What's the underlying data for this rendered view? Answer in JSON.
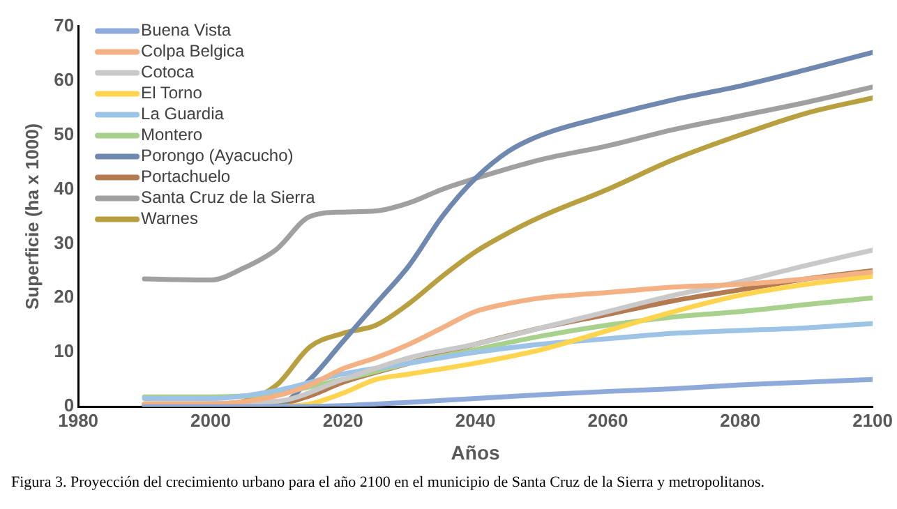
{
  "chart_data": {
    "type": "line",
    "xlabel": "Años",
    "ylabel": "Superficie (ha x 1000)",
    "xlim": [
      1980,
      2100
    ],
    "xticks": [
      1980,
      2000,
      2020,
      2040,
      2060,
      2080,
      2100
    ],
    "ylim": [
      0,
      70
    ],
    "yticks": [
      0,
      10,
      20,
      30,
      40,
      50,
      60,
      70
    ],
    "grid": false,
    "legend": "top left",
    "marker": "none",
    "line_style": "solid",
    "annotations": [
      "Figura 3. Proyección del crecimiento urbano para el año 2100 en el municipio de Santa Cruz de la Sierra y metropolitanos."
    ],
    "series": [
      {
        "name": "Buena Vista",
        "color": "#8eaadb",
        "x": [
          1990,
          2010,
          2020,
          2030,
          2040,
          2050,
          2060,
          2070,
          2080,
          2090,
          2100
        ],
        "values": [
          0,
          0,
          0.2,
          0.8,
          1.5,
          2.2,
          2.8,
          3.3,
          4,
          4.5,
          5
        ]
      },
      {
        "name": "Colpa Belgica",
        "color": "#f4b183",
        "x": [
          1990,
          2000,
          2010,
          2015,
          2020,
          2025,
          2030,
          2035,
          2040,
          2045,
          2050,
          2060,
          2070,
          2080,
          2090,
          2100
        ],
        "values": [
          0.5,
          0.5,
          2,
          4,
          7,
          9,
          11.5,
          14.5,
          17.5,
          19,
          20,
          21,
          22,
          22.5,
          23.5,
          24.8
        ]
      },
      {
        "name": "Cotoca",
        "color": "#c9c9c9",
        "x": [
          1990,
          2010,
          2020,
          2030,
          2040,
          2050,
          2060,
          2070,
          2080,
          2090,
          2100
        ],
        "values": [
          0.5,
          1,
          5,
          9,
          11.5,
          14.5,
          17.5,
          20.5,
          23,
          26,
          28.8
        ]
      },
      {
        "name": "El Torno",
        "color": "#ffd54f",
        "x": [
          1990,
          2010,
          2015,
          2020,
          2025,
          2030,
          2040,
          2050,
          2060,
          2070,
          2080,
          2090,
          2100
        ],
        "values": [
          0,
          0,
          0.5,
          2.5,
          5,
          6,
          8,
          10.5,
          14,
          17.5,
          20.5,
          22.5,
          24
        ]
      },
      {
        "name": "La Guardia",
        "color": "#9dc3e6",
        "x": [
          1990,
          2000,
          2010,
          2020,
          2030,
          2040,
          2050,
          2060,
          2070,
          2080,
          2090,
          2100
        ],
        "values": [
          1.5,
          1.5,
          3,
          6,
          8,
          10,
          11.5,
          12.5,
          13.5,
          14,
          14.5,
          15.3
        ]
      },
      {
        "name": "Montero",
        "color": "#a9d18e",
        "x": [
          1990,
          2000,
          2010,
          2020,
          2030,
          2040,
          2050,
          2060,
          2070,
          2080,
          2090,
          2100
        ],
        "values": [
          1.8,
          1.8,
          2.5,
          5,
          8,
          10.5,
          13,
          15,
          16.5,
          17.5,
          18.8,
          20
        ]
      },
      {
        "name": "Porongo (Ayacucho)",
        "color": "#6f88b0",
        "x": [
          1990,
          2000,
          2010,
          2015,
          2020,
          2025,
          2030,
          2035,
          2040,
          2045,
          2050,
          2060,
          2070,
          2080,
          2090,
          2100
        ],
        "values": [
          0.3,
          0.3,
          0.3,
          5,
          12,
          19,
          26,
          35,
          42,
          47,
          50,
          53.5,
          56.5,
          59,
          62,
          65.2
        ]
      },
      {
        "name": "Portachuelo",
        "color": "#b47a52",
        "x": [
          1990,
          2010,
          2015,
          2020,
          2030,
          2040,
          2050,
          2060,
          2070,
          2080,
          2090,
          2100
        ],
        "values": [
          0.3,
          0.5,
          2,
          4.5,
          8,
          11.5,
          14.5,
          17,
          19.5,
          21.5,
          23.5,
          25
        ]
      },
      {
        "name": "Santa Cruz de la Sierra",
        "color": "#a0a0a0",
        "x": [
          1990,
          2000,
          2005,
          2010,
          2015,
          2020,
          2025,
          2030,
          2035,
          2040,
          2050,
          2060,
          2070,
          2080,
          2090,
          2100
        ],
        "values": [
          23.5,
          23.3,
          25.5,
          29,
          35,
          35.8,
          36,
          37.5,
          40,
          42,
          45.5,
          48,
          51,
          53.5,
          56,
          58.8
        ]
      },
      {
        "name": "Warnes",
        "color": "#b8a040",
        "x": [
          1990,
          2000,
          2005,
          2010,
          2015,
          2020,
          2025,
          2030,
          2035,
          2040,
          2045,
          2050,
          2060,
          2070,
          2080,
          2090,
          2100
        ],
        "values": [
          0.5,
          0.5,
          1,
          4,
          11,
          13.5,
          15,
          19,
          24,
          28.5,
          32,
          35,
          40,
          45.5,
          50,
          54,
          56.8
        ]
      }
    ]
  }
}
